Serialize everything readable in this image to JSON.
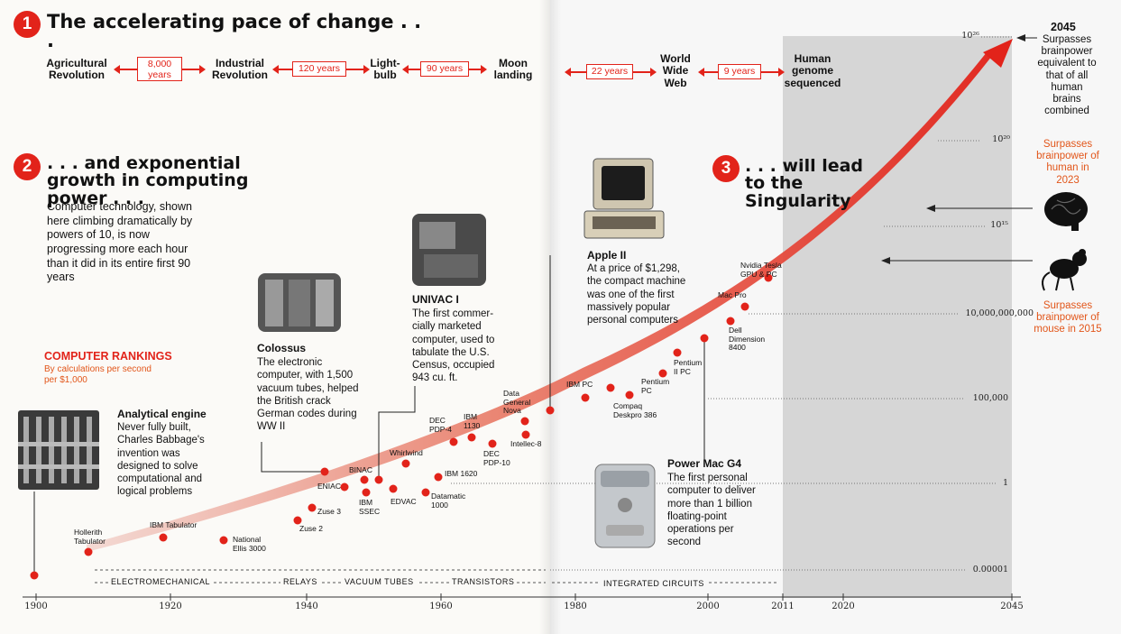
{
  "section1": {
    "number": "1",
    "title": "The accelerating pace of change . . .",
    "events": [
      "Agricultural Revolution",
      "Industrial Revolution",
      "Light-bulb",
      "Moon landing",
      "World Wide Web",
      "Human genome sequenced"
    ],
    "intervals": [
      "8,000 years",
      "120 years",
      "90 years",
      "22 years",
      "9 years"
    ]
  },
  "section2": {
    "number": "2",
    "title": ". . . and exponential growth in computing power . . .",
    "body": "Computer technology, shown here climbing dramatically by powers of 10, is now progressing more each hour than it did in its entire first 90 years"
  },
  "section3": {
    "number": "3",
    "title": ". . . will lead to the Singularity"
  },
  "rankings": {
    "title": "COMPUTER RANKINGS",
    "subtitle": "By calculations per second per $1,000"
  },
  "callouts": {
    "analytical": {
      "title": "Analytical engine",
      "body": "Never fully built, Charles Babbage's invention was designed to solve computational and logical problems"
    },
    "colossus": {
      "title": "Colossus",
      "body": "The electronic computer, with 1,500 vacuum tubes, helped the British crack German codes during WW II"
    },
    "univac": {
      "title": "UNIVAC I",
      "body": "The first commer-cially marketed computer, used to tabulate the U.S. Census, occupied 943 cu. ft."
    },
    "apple": {
      "title": "Apple II",
      "body": "At a price of $1,298, the compact machine was one of the first massively popular personal computers"
    },
    "powermac": {
      "title": "Power Mac G4",
      "body": "The first personal computer to deliver more than 1 billion floating-point operations per second"
    }
  },
  "notes": {
    "y2045_title": "2045",
    "y2045_body": "Surpasses brainpower equivalent to that of all human brains combined",
    "human": "Surpasses brainpower of human in 2023",
    "mouse": "Surpasses brainpower of mouse in 2015"
  },
  "y_ticks": [
    "10²⁶",
    "10²⁰",
    "10¹⁵",
    "10,000,000,000",
    "100,000",
    "1",
    "0.00001"
  ],
  "x_ticks": [
    "1900",
    "1920",
    "1940",
    "1960",
    "1980",
    "2000",
    "2011",
    "2020",
    "2045"
  ],
  "eras": [
    "ELECTROMECHANICAL",
    "RELAYS",
    "VACUUM TUBES",
    "TRANSISTORS",
    "INTEGRATED CIRCUITS"
  ],
  "machines": [
    "Hollerith Tabulator",
    "IBM Tabulator",
    "National Ellis 3000",
    "Zuse 2",
    "Zuse 3",
    "ENIAC",
    "BINAC",
    "IBM SSEC",
    "EDVAC",
    "Whirlwind",
    "Datamatic 1000",
    "IBM 1620",
    "DEC PDP-4",
    "IBM 1130",
    "DEC PDP-10",
    "Data General Nova",
    "Intellec-8",
    "IBM PC",
    "Compaq Deskpro 386",
    "Pentium PC",
    "Pentium II PC",
    "Dell Dimension 8400",
    "Mac Pro",
    "Nvidia Tesla GPU & PC"
  ],
  "colors": {
    "accent": "#e2231a",
    "orange": "#e2561a",
    "future": "#d6d6d6"
  }
}
